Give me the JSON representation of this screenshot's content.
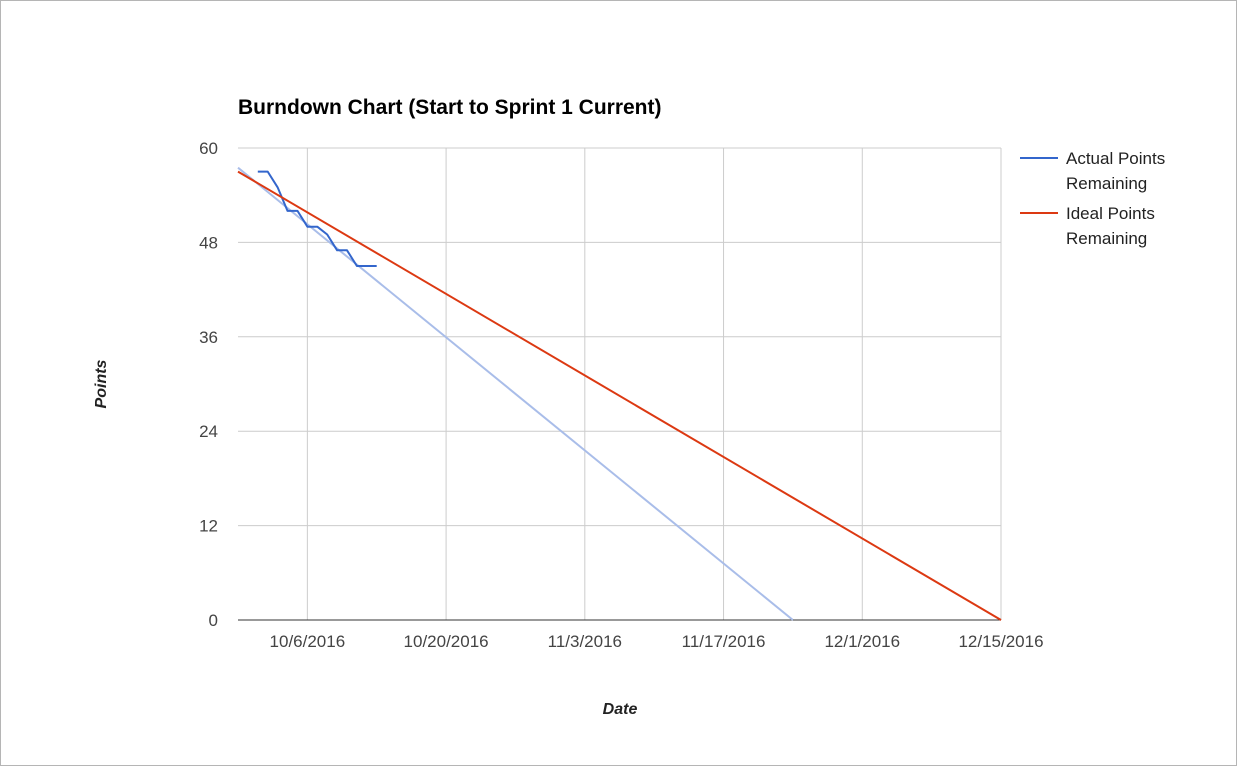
{
  "chart_data": {
    "type": "line",
    "title": "Burndown Chart (Start to Sprint 1 Current)",
    "xlabel": "Date",
    "ylabel": "Points",
    "ylim": [
      0,
      60
    ],
    "xlim": [
      "2016-09-29",
      "2016-12-15"
    ],
    "y_ticks": [
      "0",
      "12",
      "24",
      "36",
      "48",
      "60"
    ],
    "x_ticks": [
      {
        "date": "2016-10-06",
        "label": "10/6/2016"
      },
      {
        "date": "2016-10-20",
        "label": "10/20/2016"
      },
      {
        "date": "2016-11-03",
        "label": "11/3/2016"
      },
      {
        "date": "2016-11-17",
        "label": "11/17/2016"
      },
      {
        "date": "2016-12-01",
        "label": "12/1/2016"
      },
      {
        "date": "2016-12-15",
        "label": "12/15/2016"
      }
    ],
    "grid": true,
    "legend_position": "right",
    "series": [
      {
        "name": "Actual Points Remaining",
        "color": "#3366cc",
        "points": [
          {
            "x": "2016-10-01",
            "y": 57
          },
          {
            "x": "2016-10-02",
            "y": 57
          },
          {
            "x": "2016-10-03",
            "y": 55
          },
          {
            "x": "2016-10-04",
            "y": 52
          },
          {
            "x": "2016-10-05",
            "y": 52
          },
          {
            "x": "2016-10-06",
            "y": 50
          },
          {
            "x": "2016-10-07",
            "y": 50
          },
          {
            "x": "2016-10-08",
            "y": 49
          },
          {
            "x": "2016-10-09",
            "y": 47
          },
          {
            "x": "2016-10-10",
            "y": 47
          },
          {
            "x": "2016-10-11",
            "y": 45
          },
          {
            "x": "2016-10-12",
            "y": 45
          },
          {
            "x": "2016-10-13",
            "y": 45
          }
        ],
        "trendline": {
          "color": "#a9bde9",
          "points": [
            {
              "x": "2016-09-29",
              "y": 57.5
            },
            {
              "x": "2016-11-24",
              "y": 0
            }
          ]
        }
      },
      {
        "name": "Ideal Points Remaining",
        "color": "#dc3912",
        "points": [
          {
            "x": "2016-09-29",
            "y": 57
          },
          {
            "x": "2016-12-15",
            "y": 0
          }
        ]
      }
    ]
  }
}
